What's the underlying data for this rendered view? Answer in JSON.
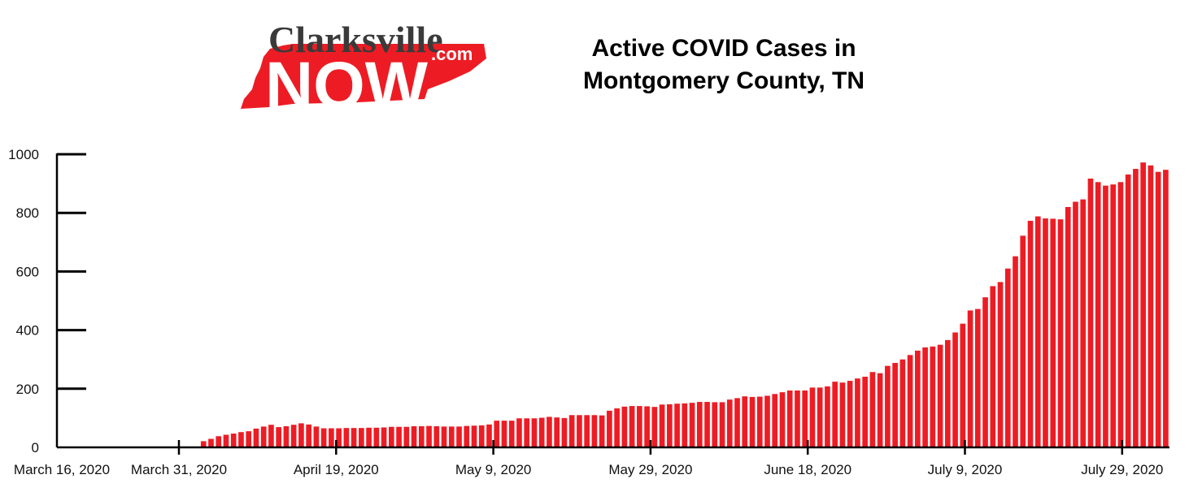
{
  "brand": {
    "line1": "Clarksville",
    "line2": "NOW",
    "suffix": ".com",
    "accent": "#ED1C24",
    "ink": "#3a3a3a"
  },
  "chart_data": {
    "type": "bar",
    "title_lines": [
      "Active COVID Cases in",
      "Montgomery County, TN"
    ],
    "xlabel": "",
    "ylabel": "",
    "ylim": [
      0,
      1000
    ],
    "y_ticks": [
      0,
      200,
      400,
      600,
      800,
      1000
    ],
    "x_tick_labels": [
      "March 16, 2020",
      "March 31, 2020",
      "April 19, 2020",
      "May 9, 2020",
      "May 29, 2020",
      "June 18, 2020",
      "July 9, 2020",
      "July 29, 2020"
    ],
    "grid": false,
    "bar_color": "#ED1C24",
    "values": [
      0,
      0,
      0,
      0,
      0,
      0,
      0,
      0,
      0,
      0,
      0,
      0,
      0,
      0,
      0,
      0,
      0,
      0,
      0,
      21,
      29,
      38,
      43,
      47,
      52,
      55,
      64,
      71,
      77,
      69,
      72,
      77,
      82,
      78,
      71,
      65,
      65,
      65,
      66,
      66,
      66,
      67,
      67,
      68,
      70,
      70,
      70,
      72,
      72,
      73,
      72,
      71,
      71,
      71,
      73,
      74,
      75,
      78,
      91,
      91,
      91,
      99,
      99,
      99,
      101,
      104,
      102,
      100,
      110,
      110,
      110,
      110,
      109,
      125,
      133,
      139,
      141,
      141,
      140,
      138,
      146,
      147,
      149,
      150,
      152,
      155,
      155,
      154,
      154,
      163,
      168,
      174,
      172,
      173,
      176,
      182,
      188,
      194,
      194,
      194,
      204,
      204,
      208,
      224,
      221,
      227,
      235,
      241,
      257,
      253,
      278,
      288,
      300,
      315,
      330,
      341,
      344,
      350,
      366,
      392,
      422,
      467,
      472,
      512,
      550,
      564,
      610,
      652,
      722,
      773,
      788,
      781,
      780,
      778,
      820,
      838,
      846,
      917,
      905,
      893,
      897,
      905,
      931,
      950,
      972,
      962,
      940,
      947
    ]
  }
}
